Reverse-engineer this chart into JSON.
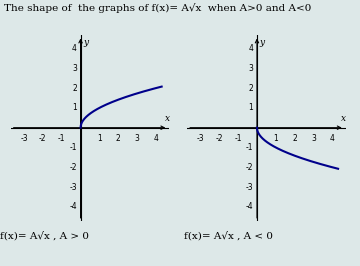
{
  "title": "The shape of  the graphs of f(x)= A√x  when A>0 and A<0",
  "title_fontsize": 7.5,
  "background_color": "#dde8e8",
  "grid_color": "#b0c8c8",
  "curve_color": "#00008B",
  "label_left": "f(x)= A√x , A > 0",
  "label_right": "f(x)= A√x , A < 0",
  "label_fontsize": 7.5,
  "xlim": [
    -3.7,
    4.7
  ],
  "ylim": [
    -4.7,
    4.7
  ],
  "xticks": [
    -3,
    -2,
    -1,
    1,
    2,
    3,
    4
  ],
  "yticks": [
    -4,
    -3,
    -2,
    -1,
    1,
    2,
    3,
    4
  ]
}
